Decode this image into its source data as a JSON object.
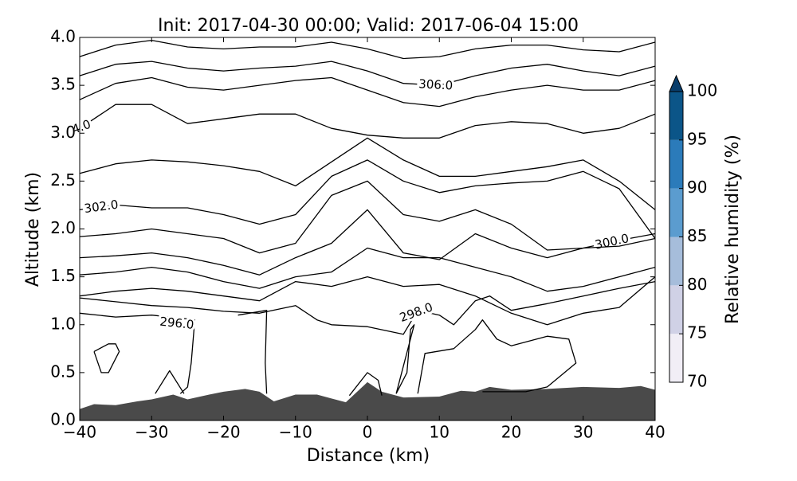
{
  "chart_data": {
    "type": "contour",
    "title": "Init: 2017-04-30 00:00; Valid: 2017-06-04 15:00",
    "xlabel": "Distance (km)",
    "ylabel": "Altitude (km)",
    "xlim": [
      -40,
      40
    ],
    "ylim": [
      0,
      4
    ],
    "xticks": [
      {
        "value": -40,
        "label": "−40"
      },
      {
        "value": -30,
        "label": "−30"
      },
      {
        "value": -20,
        "label": "−20"
      },
      {
        "value": -10,
        "label": "−10"
      },
      0,
      10,
      20,
      30,
      40
    ],
    "yticks": [
      {
        "value": 0,
        "label": "0.0"
      },
      {
        "value": 0.5,
        "label": "0.5"
      },
      {
        "value": 1,
        "label": "1.0"
      },
      {
        "value": 1.5,
        "label": "1.5"
      },
      {
        "value": 2,
        "label": "2.0"
      },
      {
        "value": 2.5,
        "label": "2.5"
      },
      {
        "value": 3,
        "label": "3.0"
      },
      {
        "value": 3.5,
        "label": "3.5"
      },
      {
        "value": 4,
        "label": "4.0"
      }
    ],
    "line_color": "#000000",
    "terrain": {
      "color": "#4a4a4a",
      "x": [
        -40,
        -38,
        -35,
        -32,
        -30,
        -27,
        -25,
        -22,
        -20,
        -17,
        -15,
        -13,
        -10,
        -7,
        -5,
        -3,
        0,
        2,
        5,
        10,
        13,
        15,
        17,
        20,
        25,
        30,
        35,
        38,
        40
      ],
      "values": [
        0.12,
        0.17,
        0.16,
        0.2,
        0.22,
        0.27,
        0.22,
        0.27,
        0.3,
        0.33,
        0.3,
        0.2,
        0.27,
        0.27,
        0.23,
        0.19,
        0.4,
        0.3,
        0.24,
        0.25,
        0.31,
        0.3,
        0.35,
        0.32,
        0.33,
        0.35,
        0.34,
        0.36,
        0.32
      ]
    },
    "contours": [
      {
        "x": [
          -40,
          -35,
          -30,
          -25,
          -20,
          -15,
          -10,
          -5,
          0,
          5,
          10,
          15,
          20,
          25,
          30,
          35,
          40
        ],
        "values": [
          3.8,
          3.92,
          3.97,
          3.9,
          3.88,
          3.9,
          3.9,
          3.95,
          3.88,
          3.78,
          3.8,
          3.88,
          3.92,
          3.92,
          3.87,
          3.85,
          3.95
        ]
      },
      {
        "label": "306.0",
        "x": [
          -40,
          -35,
          -30,
          -25,
          -20,
          -15,
          -10,
          -5,
          0,
          5,
          10,
          15,
          20,
          25,
          30,
          35,
          40
        ],
        "values": [
          3.6,
          3.72,
          3.75,
          3.68,
          3.65,
          3.68,
          3.7,
          3.75,
          3.65,
          3.52,
          3.5,
          3.6,
          3.68,
          3.72,
          3.65,
          3.6,
          3.7
        ]
      },
      {
        "x": [
          -40,
          -35,
          -30,
          -25,
          -20,
          -15,
          -10,
          -5,
          0,
          5,
          10,
          15,
          20,
          25,
          30,
          35,
          40
        ],
        "values": [
          3.35,
          3.52,
          3.58,
          3.48,
          3.45,
          3.5,
          3.55,
          3.58,
          3.45,
          3.32,
          3.28,
          3.38,
          3.45,
          3.5,
          3.45,
          3.45,
          3.55
        ]
      },
      {
        "label": "4.0",
        "x": [
          -40,
          -35,
          -30,
          -25,
          -20,
          -15,
          -10,
          -5,
          0,
          5,
          10,
          15,
          20,
          25,
          30,
          35,
          40
        ],
        "values": [
          3.05,
          3.3,
          3.3,
          3.1,
          3.15,
          3.2,
          3.2,
          3.05,
          2.98,
          2.95,
          2.95,
          3.08,
          3.12,
          3.1,
          3.0,
          3.05,
          3.2
        ]
      },
      {
        "x": [
          -40,
          -35,
          -30,
          -25,
          -20,
          -15,
          -10,
          -5,
          0,
          5,
          10,
          15,
          20,
          25,
          30,
          35,
          40
        ],
        "values": [
          2.58,
          2.68,
          2.72,
          2.7,
          2.66,
          2.6,
          2.45,
          2.7,
          2.95,
          2.72,
          2.55,
          2.55,
          2.6,
          2.65,
          2.72,
          2.5,
          2.2
        ]
      },
      {
        "label": "302.0",
        "x": [
          -40,
          -35,
          -30,
          -25,
          -20,
          -15,
          -10,
          -5,
          0,
          5,
          10,
          15,
          20,
          25,
          30,
          35,
          40
        ],
        "values": [
          2.2,
          2.25,
          2.22,
          2.22,
          2.15,
          2.05,
          2.15,
          2.55,
          2.72,
          2.5,
          2.38,
          2.45,
          2.48,
          2.5,
          2.6,
          2.42,
          1.9
        ]
      },
      {
        "label": "300.0",
        "x": [
          -40,
          -35,
          -30,
          -25,
          -20,
          -15,
          -10,
          -5,
          0,
          5,
          10,
          15,
          20,
          25,
          30,
          35,
          40
        ],
        "values": [
          1.92,
          1.95,
          2.0,
          1.95,
          1.9,
          1.75,
          1.85,
          2.35,
          2.5,
          2.15,
          2.08,
          2.2,
          2.05,
          1.78,
          1.8,
          1.88,
          1.95
        ]
      },
      {
        "x": [
          -40,
          -35,
          -30,
          -25,
          -20,
          -15,
          -10,
          -5,
          0,
          5,
          10,
          15,
          20,
          25,
          30,
          35,
          40
        ],
        "values": [
          1.7,
          1.72,
          1.75,
          1.7,
          1.62,
          1.52,
          1.7,
          1.85,
          2.2,
          1.75,
          1.68,
          1.95,
          1.8,
          1.7,
          1.8,
          1.82,
          1.9
        ]
      },
      {
        "x": [
          -40,
          -35,
          -30,
          -25,
          -20,
          -15,
          -10,
          -5,
          0,
          5,
          10,
          15,
          20,
          25,
          30,
          35,
          40
        ],
        "values": [
          1.52,
          1.55,
          1.6,
          1.55,
          1.45,
          1.38,
          1.5,
          1.55,
          1.8,
          1.7,
          1.7,
          1.6,
          1.5,
          1.35,
          1.4,
          1.5,
          1.6
        ]
      },
      {
        "x": [
          -40,
          -35,
          -30,
          -25,
          -20,
          -15,
          -10,
          -5,
          0,
          5,
          10,
          15,
          20,
          25,
          30,
          35,
          40
        ],
        "values": [
          1.3,
          1.35,
          1.38,
          1.35,
          1.3,
          1.25,
          1.45,
          1.4,
          1.5,
          1.4,
          1.42,
          1.3,
          1.12,
          1.0,
          1.12,
          1.18,
          1.5
        ]
      },
      {
        "label": "298.0",
        "x": [
          -40,
          -35,
          -30,
          -25,
          -20,
          -15,
          -10,
          -7,
          -5,
          0,
          5,
          7,
          10,
          12,
          15,
          17,
          20,
          25,
          30,
          35,
          40
        ],
        "values": [
          1.28,
          1.24,
          1.2,
          1.18,
          1.14,
          1.12,
          1.2,
          1.05,
          1.0,
          0.98,
          0.9,
          1.15,
          1.1,
          1.0,
          1.25,
          1.3,
          1.15,
          1.22,
          1.3,
          1.38,
          1.45
        ]
      },
      {
        "label": "296.0",
        "x": [
          -40,
          -35,
          -30,
          -25,
          -24,
          -24.5,
          -25,
          -26
        ],
        "values": [
          1.12,
          1.08,
          1.1,
          1.06,
          1.05,
          0.6,
          0.35,
          0.28
        ]
      },
      {
        "x": [
          -18,
          -14,
          -14.2,
          -14
        ],
        "values": [
          1.1,
          1.15,
          0.6,
          0.28
        ]
      },
      {
        "x": [
          -38,
          -36,
          -35,
          -34.5,
          -36,
          -37,
          -38
        ],
        "values": [
          0.72,
          0.8,
          0.8,
          0.72,
          0.5,
          0.5,
          0.72
        ]
      },
      {
        "x": [
          -29.5,
          -27.5,
          -25.5
        ],
        "values": [
          0.28,
          0.52,
          0.28
        ]
      },
      {
        "x": [
          -2.5,
          0,
          1.5,
          2
        ],
        "values": [
          0.26,
          0.5,
          0.42,
          0.26
        ]
      },
      {
        "x": [
          4,
          5.5,
          6,
          6.5,
          4
        ],
        "values": [
          0.28,
          0.5,
          0.95,
          1.0,
          0.28
        ]
      },
      {
        "x": [
          7,
          8,
          12,
          15,
          16,
          18,
          20,
          25,
          28,
          29,
          25,
          22,
          17,
          16
        ],
        "values": [
          0.28,
          0.7,
          0.75,
          0.95,
          1.05,
          0.85,
          0.78,
          0.88,
          0.85,
          0.6,
          0.35,
          0.3,
          0.3,
          0.3
        ]
      }
    ],
    "colorbar": {
      "label": "Relative humidity (%)",
      "ticks": [
        70,
        75,
        80,
        85,
        90,
        95,
        100
      ],
      "colors": [
        "#f1eef6",
        "#d0d1e6",
        "#a6bddb",
        "#5b9ccf",
        "#2b7bba",
        "#0b5588"
      ],
      "extend_color": "#083d6b"
    }
  }
}
